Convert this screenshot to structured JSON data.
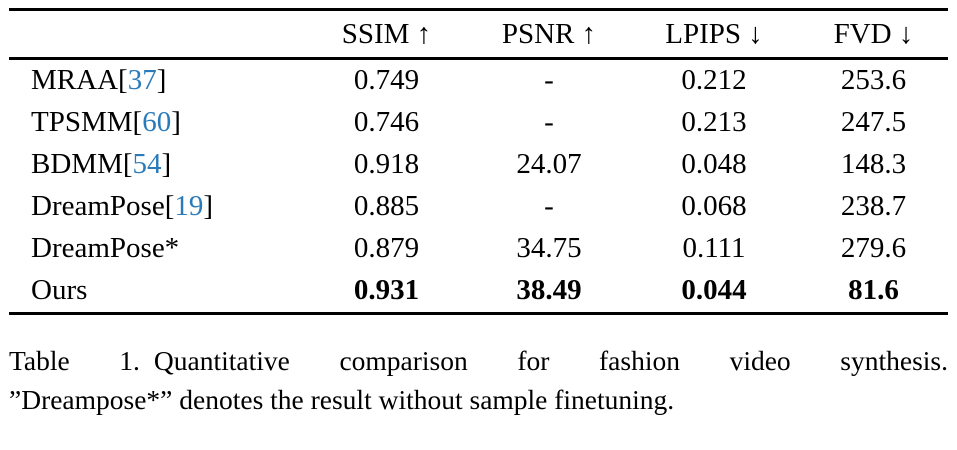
{
  "colors": {
    "citation_blue": "#2b7bba",
    "text": "#000000",
    "rule": "#000000",
    "background": "#ffffff"
  },
  "table": {
    "headers": {
      "method": "",
      "ssim": "SSIM ↑",
      "psnr": "PSNR ↑",
      "lpips": "LPIPS ↓",
      "fvd": "FVD ↓"
    },
    "rows": [
      {
        "method": "MRAA",
        "cite_l": "[",
        "cite": "37",
        "cite_r": "]",
        "ssim": "0.749",
        "psnr": "-",
        "lpips": "0.212",
        "fvd": "253.6"
      },
      {
        "method": "TPSMM",
        "cite_l": "[",
        "cite": "60",
        "cite_r": "]",
        "ssim": "0.746",
        "psnr": "-",
        "lpips": "0.213",
        "fvd": "247.5"
      },
      {
        "method": "BDMM",
        "cite_l": "[",
        "cite": "54",
        "cite_r": "]",
        "ssim": "0.918",
        "psnr": "24.07",
        "lpips": "0.048",
        "fvd": "148.3"
      },
      {
        "method": "DreamPose",
        "cite_l": "[",
        "cite": "19",
        "cite_r": "]",
        "ssim": "0.885",
        "psnr": "-",
        "lpips": "0.068",
        "fvd": "238.7"
      },
      {
        "method": "DreamPose*",
        "cite_l": "",
        "cite": "",
        "cite_r": "",
        "ssim": "0.879",
        "psnr": "34.75",
        "lpips": "0.111",
        "fvd": "279.6"
      },
      {
        "method": "Ours",
        "cite_l": "",
        "cite": "",
        "cite_r": "",
        "ssim": "0.931",
        "psnr": "38.49",
        "lpips": "0.044",
        "fvd": "81.6"
      }
    ]
  },
  "caption": {
    "line1_label": "Table 1.",
    "line1_text": "Quantitative comparison for fashion video synthesis.",
    "line2": "”Dreampose*” denotes the result without sample finetuning."
  }
}
